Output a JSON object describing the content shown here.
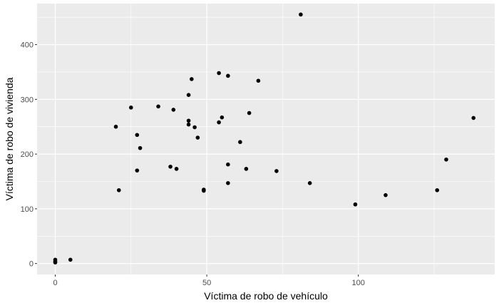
{
  "chart_data": {
    "type": "scatter",
    "xlabel": "Víctima de robo de vehículo",
    "ylabel": "Víctima de robo de vivienda",
    "xlim": [
      -6,
      145
    ],
    "ylim": [
      -20,
      475
    ],
    "x_ticks": [
      0,
      50,
      100
    ],
    "x_tick_labels": [
      "0",
      "50",
      "100"
    ],
    "y_ticks": [
      0,
      100,
      200,
      300,
      400
    ],
    "y_tick_labels": [
      "0",
      "100",
      "200",
      "300",
      "400"
    ],
    "grid": true,
    "legend": "none",
    "colors": {
      "panel": "#ebebeb",
      "grid_major": "#ffffff",
      "point": "#000000",
      "tick_mark": "#333333"
    },
    "points": [
      {
        "x": 0,
        "y": 2
      },
      {
        "x": 0,
        "y": 4
      },
      {
        "x": 0,
        "y": 7
      },
      {
        "x": 5,
        "y": 7
      },
      {
        "x": 20,
        "y": 250
      },
      {
        "x": 21,
        "y": 134
      },
      {
        "x": 25,
        "y": 285
      },
      {
        "x": 27,
        "y": 235
      },
      {
        "x": 27,
        "y": 170
      },
      {
        "x": 28,
        "y": 211
      },
      {
        "x": 34,
        "y": 287
      },
      {
        "x": 38,
        "y": 177
      },
      {
        "x": 39,
        "y": 281
      },
      {
        "x": 40,
        "y": 173
      },
      {
        "x": 44,
        "y": 308
      },
      {
        "x": 44,
        "y": 261
      },
      {
        "x": 44,
        "y": 254
      },
      {
        "x": 45,
        "y": 337
      },
      {
        "x": 46,
        "y": 249
      },
      {
        "x": 47,
        "y": 230
      },
      {
        "x": 49,
        "y": 135
      },
      {
        "x": 49,
        "y": 133
      },
      {
        "x": 54,
        "y": 348
      },
      {
        "x": 54,
        "y": 258
      },
      {
        "x": 55,
        "y": 267
      },
      {
        "x": 57,
        "y": 343
      },
      {
        "x": 57,
        "y": 181
      },
      {
        "x": 57,
        "y": 147
      },
      {
        "x": 61,
        "y": 222
      },
      {
        "x": 63,
        "y": 173
      },
      {
        "x": 64,
        "y": 275
      },
      {
        "x": 67,
        "y": 334
      },
      {
        "x": 73,
        "y": 169
      },
      {
        "x": 81,
        "y": 455
      },
      {
        "x": 84,
        "y": 147
      },
      {
        "x": 99,
        "y": 108
      },
      {
        "x": 109,
        "y": 125
      },
      {
        "x": 126,
        "y": 134
      },
      {
        "x": 129,
        "y": 190
      },
      {
        "x": 138,
        "y": 266
      }
    ]
  }
}
